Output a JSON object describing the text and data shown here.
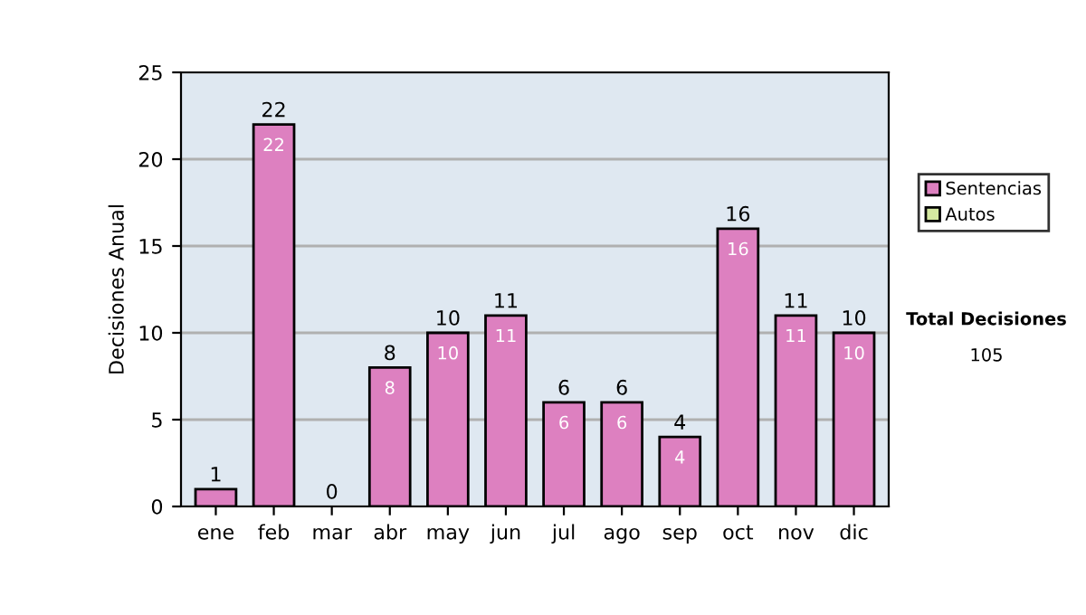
{
  "chart_data": {
    "type": "bar",
    "ylabel": "Decisiones Anual",
    "categories": [
      "ene",
      "feb",
      "mar",
      "abr",
      "may",
      "jun",
      "jul",
      "ago",
      "sep",
      "oct",
      "nov",
      "dic"
    ],
    "stacked": true,
    "series": [
      {
        "name": "Sentencias",
        "color": "#dd80c0",
        "values": [
          1,
          22,
          0,
          8,
          10,
          11,
          6,
          6,
          4,
          16,
          11,
          10
        ],
        "value_labels": [
          null,
          "22",
          null,
          "8",
          "10",
          "11",
          "6",
          "6",
          "4",
          "16",
          "11",
          "10"
        ]
      },
      {
        "name": "Autos",
        "color": "#d4e8a0",
        "values": [
          0,
          0,
          0,
          0,
          0,
          0,
          0,
          0,
          0,
          0,
          0,
          0
        ]
      }
    ],
    "totals": [
      "1",
      "22",
      "0",
      "8",
      "10",
      "11",
      "6",
      "6",
      "4",
      "16",
      "11",
      "10"
    ],
    "ylim": [
      0,
      25
    ],
    "yticks": [
      0,
      5,
      10,
      15,
      20,
      25
    ],
    "grid": "y",
    "legend": "right",
    "annotations": [
      "Total Decisiones",
      "105"
    ]
  }
}
